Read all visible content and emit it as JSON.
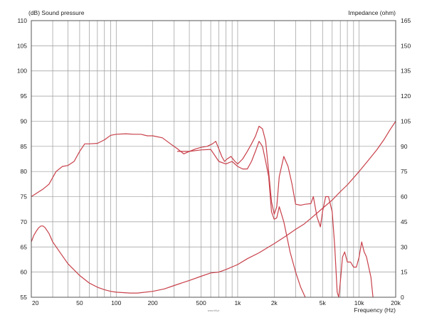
{
  "chart_data": {
    "type": "line",
    "title": "",
    "ylabel_left": "(dB)  Sound pressure",
    "ylabel_right": "Impedance  (ohm)",
    "xlabel": "Frequency  (Hz)",
    "xscale": "log",
    "xlim": [
      20,
      20000
    ],
    "ylim_left": [
      55,
      110
    ],
    "ylim_right": [
      0,
      165
    ],
    "grid": true,
    "x_ticks": [
      {
        "value": 20,
        "label": "20"
      },
      {
        "value": 50,
        "label": "50"
      },
      {
        "value": 100,
        "label": "100"
      },
      {
        "value": 200,
        "label": "200"
      },
      {
        "value": 500,
        "label": "500"
      },
      {
        "value": 1000,
        "label": "1k"
      },
      {
        "value": 2000,
        "label": "2k"
      },
      {
        "value": 5000,
        "label": "5k"
      },
      {
        "value": 10000,
        "label": "10k"
      },
      {
        "value": 20000,
        "label": "20k"
      }
    ],
    "y_ticks_left": [
      {
        "value": 110,
        "label": "110"
      },
      {
        "value": 105,
        "label": "105"
      },
      {
        "value": 100,
        "label": "100"
      },
      {
        "value": 95,
        "label": "95"
      },
      {
        "value": 90,
        "label": "90"
      },
      {
        "value": 85,
        "label": "85"
      },
      {
        "value": 80,
        "label": "80"
      },
      {
        "value": 75,
        "label": "75"
      },
      {
        "value": 70,
        "label": "70"
      },
      {
        "value": 65,
        "label": "65"
      },
      {
        "value": 60,
        "label": "60"
      },
      {
        "value": 55,
        "label": "55"
      }
    ],
    "y_ticks_right": [
      {
        "value": 165,
        "label": "165"
      },
      {
        "value": 150,
        "label": "150"
      },
      {
        "value": 135,
        "label": "135"
      },
      {
        "value": 120,
        "label": "120"
      },
      {
        "value": 105,
        "label": "105"
      },
      {
        "value": 90,
        "label": "90"
      },
      {
        "value": 75,
        "label": "75"
      },
      {
        "value": 60,
        "label": "60"
      },
      {
        "value": 45,
        "label": "45"
      },
      {
        "value": 30,
        "label": "30"
      },
      {
        "value": 15,
        "label": "15"
      },
      {
        "value": 0,
        "label": "0"
      }
    ],
    "colors": {
      "curve": "#c8404a",
      "grid": "#9a9a9a",
      "frame": "#555555"
    },
    "series": [
      {
        "axis": "left",
        "points": [
          [
            20,
            75
          ],
          [
            25,
            76.5
          ],
          [
            28,
            77.5
          ],
          [
            32,
            80
          ],
          [
            36,
            81
          ],
          [
            40,
            81.2
          ],
          [
            45,
            82
          ],
          [
            50,
            84
          ],
          [
            55,
            85.5
          ],
          [
            60,
            85.5
          ],
          [
            70,
            85.6
          ],
          [
            80,
            86.3
          ],
          [
            90,
            87.2
          ],
          [
            100,
            87.4
          ],
          [
            120,
            87.5
          ],
          [
            140,
            87.4
          ],
          [
            160,
            87.4
          ],
          [
            180,
            87.1
          ],
          [
            200,
            87.1
          ],
          [
            240,
            86.7
          ],
          [
            280,
            85.5
          ],
          [
            320,
            84.5
          ],
          [
            360,
            83.5
          ],
          [
            400,
            84
          ],
          [
            450,
            84.5
          ],
          [
            500,
            84.8
          ],
          [
            560,
            85
          ],
          [
            620,
            85.5
          ],
          [
            660,
            86
          ],
          [
            700,
            84.5
          ],
          [
            740,
            83
          ],
          [
            780,
            82
          ],
          [
            820,
            82.5
          ],
          [
            880,
            83
          ],
          [
            950,
            82
          ],
          [
            1000,
            81.5
          ],
          [
            1100,
            82.5
          ],
          [
            1200,
            84
          ],
          [
            1300,
            85.5
          ],
          [
            1400,
            87
          ],
          [
            1500,
            89
          ],
          [
            1600,
            88.5
          ],
          [
            1700,
            86
          ],
          [
            1800,
            80
          ],
          [
            1900,
            74
          ],
          [
            2000,
            71.5
          ],
          [
            2100,
            73
          ],
          [
            2200,
            79
          ],
          [
            2400,
            83
          ],
          [
            2600,
            81
          ],
          [
            2800,
            77.5
          ],
          [
            3000,
            73.5
          ],
          [
            3300,
            73.3
          ],
          [
            3600,
            73.5
          ],
          [
            4000,
            73.6
          ],
          [
            4200,
            75
          ],
          [
            4500,
            71
          ],
          [
            4800,
            69
          ],
          [
            5000,
            72
          ],
          [
            5300,
            75
          ],
          [
            5600,
            75
          ],
          [
            6000,
            72
          ],
          [
            6300,
            65
          ],
          [
            6600,
            56
          ],
          [
            6800,
            55
          ],
          [
            7000,
            58
          ],
          [
            7300,
            63
          ],
          [
            7600,
            64
          ],
          [
            8000,
            62
          ],
          [
            8500,
            62
          ],
          [
            9000,
            61
          ],
          [
            9500,
            61
          ],
          [
            10000,
            63
          ],
          [
            10500,
            66
          ],
          [
            11000,
            64
          ],
          [
            11500,
            63
          ],
          [
            12000,
            61
          ],
          [
            12500,
            59
          ],
          [
            13000,
            55
          ]
        ]
      },
      {
        "axis": "left",
        "points": [
          [
            320,
            84
          ],
          [
            400,
            84
          ],
          [
            500,
            84.3
          ],
          [
            600,
            84.4
          ],
          [
            700,
            82
          ],
          [
            800,
            81.5
          ],
          [
            900,
            82
          ],
          [
            1000,
            81
          ],
          [
            1100,
            80.5
          ],
          [
            1200,
            80.5
          ],
          [
            1300,
            82
          ],
          [
            1400,
            84
          ],
          [
            1500,
            86
          ],
          [
            1600,
            85
          ],
          [
            1700,
            82
          ],
          [
            1800,
            79
          ],
          [
            1900,
            72
          ],
          [
            2000,
            70.5
          ],
          [
            2100,
            70.8
          ],
          [
            2200,
            73
          ],
          [
            2400,
            70
          ],
          [
            2700,
            64
          ],
          [
            3000,
            60
          ],
          [
            3300,
            57
          ],
          [
            3600,
            55
          ]
        ]
      },
      {
        "axis": "right",
        "points": [
          [
            20,
            33
          ],
          [
            21,
            37
          ],
          [
            22,
            39.5
          ],
          [
            23,
            41.5
          ],
          [
            24,
            42.5
          ],
          [
            25,
            42.5
          ],
          [
            26,
            41.5
          ],
          [
            28,
            38
          ],
          [
            30,
            33
          ],
          [
            35,
            26
          ],
          [
            40,
            20
          ],
          [
            50,
            13
          ],
          [
            60,
            8.5
          ],
          [
            70,
            6
          ],
          [
            80,
            4.5
          ],
          [
            90,
            3.5
          ],
          [
            100,
            3
          ],
          [
            130,
            2.5
          ],
          [
            150,
            2.5
          ],
          [
            200,
            3.5
          ],
          [
            250,
            5
          ],
          [
            300,
            7
          ],
          [
            400,
            10
          ],
          [
            500,
            12.5
          ],
          [
            600,
            14.5
          ],
          [
            700,
            15
          ],
          [
            800,
            16.5
          ],
          [
            1000,
            19.5
          ],
          [
            1200,
            23
          ],
          [
            1500,
            26.5
          ],
          [
            2000,
            32
          ],
          [
            2500,
            36.5
          ],
          [
            3000,
            40.5
          ],
          [
            3500,
            43.5
          ],
          [
            4000,
            47
          ],
          [
            5000,
            53
          ],
          [
            6000,
            58
          ],
          [
            7000,
            63
          ],
          [
            8000,
            67
          ],
          [
            10000,
            75
          ],
          [
            12000,
            82
          ],
          [
            14000,
            88
          ],
          [
            16000,
            94
          ],
          [
            18000,
            100
          ],
          [
            20000,
            105
          ]
        ]
      }
    ]
  },
  "credit": "www.hifi.pl"
}
